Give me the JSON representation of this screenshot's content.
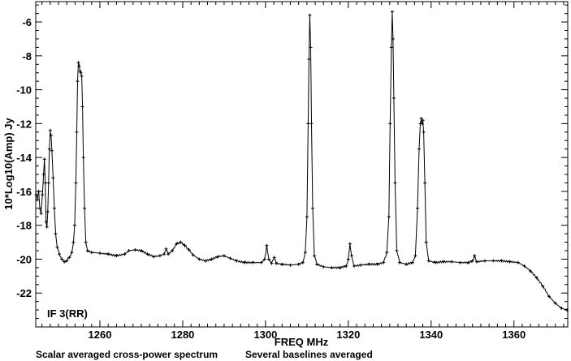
{
  "chart_data": {
    "type": "line",
    "xlabel": "FREQ   MHz",
    "ylabel": "10*Log10(Amp) Jy",
    "xlim": [
      1244.5,
      1373
    ],
    "ylim": [
      -24,
      -4.8
    ],
    "x_ticks": [
      1260,
      1280,
      1300,
      1320,
      1340,
      1360
    ],
    "y_ticks": [
      -22,
      -20,
      -18,
      -16,
      -14,
      -12,
      -10,
      -8,
      -6
    ],
    "annotation": "IF 3(RR)",
    "grid": false,
    "markers": "small crosses",
    "series": [
      {
        "color": "#000000",
        "points": [
          [
            1244.6,
            -16.2
          ],
          [
            1244.9,
            -16.5
          ],
          [
            1245.2,
            -16.0
          ],
          [
            1245.5,
            -17.0
          ],
          [
            1245.8,
            -17.3
          ],
          [
            1246.1,
            -16.2
          ],
          [
            1246.4,
            -15.0
          ],
          [
            1246.6,
            -14.1
          ],
          [
            1246.8,
            -15.5
          ],
          [
            1247.0,
            -17.8
          ],
          [
            1247.2,
            -18.1
          ],
          [
            1247.4,
            -17.2
          ],
          [
            1247.6,
            -15.5
          ],
          [
            1247.8,
            -13.5
          ],
          [
            1248.0,
            -12.4
          ],
          [
            1248.2,
            -12.7
          ],
          [
            1248.4,
            -13.6
          ],
          [
            1248.7,
            -15.2
          ],
          [
            1249.0,
            -17.0
          ],
          [
            1249.3,
            -18.5
          ],
          [
            1249.7,
            -19.3
          ],
          [
            1250.2,
            -19.7
          ],
          [
            1250.8,
            -20.0
          ],
          [
            1251.4,
            -20.15
          ],
          [
            1252.0,
            -20.1
          ],
          [
            1252.6,
            -19.9
          ],
          [
            1253.2,
            -19.6
          ],
          [
            1253.6,
            -19.0
          ],
          [
            1253.9,
            -18.0
          ],
          [
            1254.2,
            -15.5
          ],
          [
            1254.4,
            -12.5
          ],
          [
            1254.6,
            -9.5
          ],
          [
            1254.8,
            -8.4
          ],
          [
            1255.0,
            -8.6
          ],
          [
            1255.2,
            -8.9
          ],
          [
            1255.4,
            -9.0
          ],
          [
            1255.6,
            -9.2
          ],
          [
            1255.8,
            -11.0
          ],
          [
            1256.0,
            -14.0
          ],
          [
            1256.3,
            -17.0
          ],
          [
            1256.6,
            -19.0
          ],
          [
            1257.0,
            -19.5
          ],
          [
            1258.0,
            -19.6
          ],
          [
            1260.0,
            -19.65
          ],
          [
            1262.0,
            -19.7
          ],
          [
            1264.0,
            -19.8
          ],
          [
            1266.0,
            -19.7
          ],
          [
            1267.0,
            -19.5
          ],
          [
            1268.5,
            -19.45
          ],
          [
            1270.0,
            -19.5
          ],
          [
            1271.5,
            -19.7
          ],
          [
            1273.0,
            -19.85
          ],
          [
            1274.5,
            -19.8
          ],
          [
            1275.5,
            -19.7
          ],
          [
            1276.0,
            -19.4
          ],
          [
            1276.5,
            -19.7
          ],
          [
            1277.5,
            -19.5
          ],
          [
            1278.5,
            -19.1
          ],
          [
            1279.5,
            -19.0
          ],
          [
            1280.5,
            -19.2
          ],
          [
            1281.5,
            -19.45
          ],
          [
            1282.5,
            -19.75
          ],
          [
            1284.0,
            -20.0
          ],
          [
            1285.5,
            -20.1
          ],
          [
            1287.0,
            -20.0
          ],
          [
            1288.5,
            -19.85
          ],
          [
            1290.0,
            -19.8
          ],
          [
            1291.5,
            -19.95
          ],
          [
            1293.0,
            -20.1
          ],
          [
            1295.0,
            -20.2
          ],
          [
            1297.0,
            -20.2
          ],
          [
            1299.0,
            -20.2
          ],
          [
            1299.8,
            -20.0
          ],
          [
            1300.3,
            -19.2
          ],
          [
            1300.8,
            -20.0
          ],
          [
            1301.5,
            -20.25
          ],
          [
            1302.1,
            -19.9
          ],
          [
            1302.6,
            -20.25
          ],
          [
            1304.0,
            -20.3
          ],
          [
            1306.0,
            -20.35
          ],
          [
            1308.0,
            -20.3
          ],
          [
            1309.0,
            -20.2
          ],
          [
            1309.6,
            -19.6
          ],
          [
            1310.0,
            -17.5
          ],
          [
            1310.3,
            -12.0
          ],
          [
            1310.5,
            -8.2
          ],
          [
            1310.7,
            -5.6
          ],
          [
            1310.9,
            -7.5
          ],
          [
            1311.1,
            -12.0
          ],
          [
            1311.4,
            -17.0
          ],
          [
            1311.8,
            -19.8
          ],
          [
            1312.4,
            -20.3
          ],
          [
            1314.0,
            -20.45
          ],
          [
            1316.0,
            -20.5
          ],
          [
            1318.0,
            -20.5
          ],
          [
            1319.5,
            -20.4
          ],
          [
            1320.0,
            -20.0
          ],
          [
            1320.4,
            -19.1
          ],
          [
            1320.8,
            -19.8
          ],
          [
            1321.4,
            -20.4
          ],
          [
            1323.0,
            -20.35
          ],
          [
            1325.0,
            -20.3
          ],
          [
            1327.0,
            -20.3
          ],
          [
            1328.5,
            -20.2
          ],
          [
            1329.3,
            -19.6
          ],
          [
            1329.8,
            -17.5
          ],
          [
            1330.1,
            -12.0
          ],
          [
            1330.4,
            -7.5
          ],
          [
            1330.6,
            -5.4
          ],
          [
            1330.8,
            -7.0
          ],
          [
            1331.0,
            -10.5
          ],
          [
            1331.3,
            -15.5
          ],
          [
            1331.7,
            -19.5
          ],
          [
            1332.4,
            -20.2
          ],
          [
            1334.0,
            -20.3
          ],
          [
            1335.5,
            -20.2
          ],
          [
            1336.2,
            -19.8
          ],
          [
            1336.7,
            -17.0
          ],
          [
            1337.1,
            -13.5
          ],
          [
            1337.4,
            -12.0
          ],
          [
            1337.6,
            -11.7
          ],
          [
            1337.8,
            -12.0
          ],
          [
            1338.0,
            -11.8
          ],
          [
            1338.2,
            -12.5
          ],
          [
            1338.5,
            -15.5
          ],
          [
            1338.8,
            -19.0
          ],
          [
            1339.4,
            -20.1
          ],
          [
            1341.0,
            -20.2
          ],
          [
            1343.0,
            -20.15
          ],
          [
            1345.0,
            -20.15
          ],
          [
            1347.0,
            -20.2
          ],
          [
            1349.0,
            -20.2
          ],
          [
            1350.0,
            -20.1
          ],
          [
            1350.5,
            -19.8
          ],
          [
            1351.0,
            -20.15
          ],
          [
            1353.0,
            -20.1
          ],
          [
            1355.0,
            -20.1
          ],
          [
            1357.0,
            -20.1
          ],
          [
            1359.0,
            -20.15
          ],
          [
            1361.0,
            -20.2
          ],
          [
            1362.5,
            -20.4
          ],
          [
            1364.0,
            -20.7
          ],
          [
            1365.5,
            -21.1
          ],
          [
            1367.0,
            -21.6
          ],
          [
            1368.5,
            -22.2
          ],
          [
            1370.0,
            -22.6
          ],
          [
            1371.5,
            -22.9
          ],
          [
            1372.8,
            -23.0
          ]
        ]
      }
    ]
  },
  "footer": {
    "caption_left": "Scalar averaged cross-power spectrum",
    "caption_right": "Several baselines averaged"
  }
}
